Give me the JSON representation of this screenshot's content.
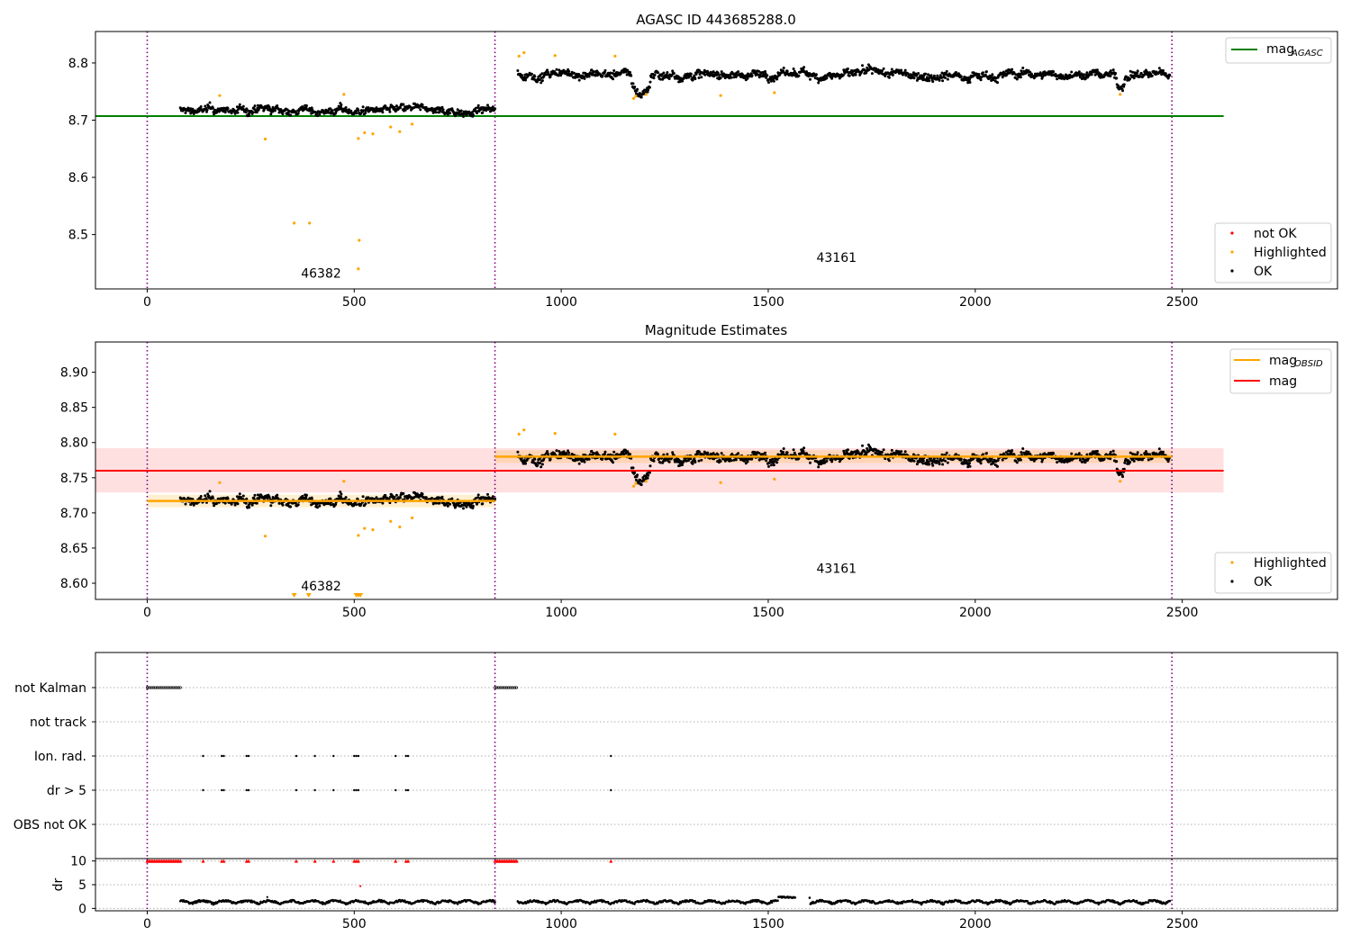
{
  "chart_data": [
    {
      "type": "scatter",
      "title": "AGASC ID 443685288.0",
      "xlabel": "",
      "ylabel": "",
      "xlim": [
        -125,
        2875
      ],
      "ylim": [
        8.405,
        8.855
      ],
      "xticks": [
        0,
        500,
        1000,
        1500,
        2000,
        2500
      ],
      "yticks": [
        8.5,
        8.6,
        8.7,
        8.8
      ],
      "ytick_labels": [
        "8.5",
        "8.6",
        "8.7",
        "8.8"
      ],
      "grid": false,
      "vlines": [
        0,
        840,
        2475
      ],
      "obsid_labels": [
        {
          "text": "46382",
          "x": 420,
          "y": 8.425
        },
        {
          "text": "43161",
          "x": 1665,
          "y": 8.452
        }
      ],
      "hlines": [
        {
          "name": "mag_AGASC",
          "y": 8.707,
          "x_range": [
            -125,
            2600
          ],
          "color": "#008000"
        }
      ],
      "segments": [
        {
          "x_range": [
            80,
            840
          ],
          "mean": 8.717,
          "spread": 0.008,
          "dips": []
        },
        {
          "x_range": [
            895,
            2470
          ],
          "mean": 8.78,
          "spread": 0.009,
          "dips": [
            [
              1170,
              1215,
              -0.035
            ],
            [
              2340,
              2360,
              -0.02
            ]
          ]
        }
      ],
      "highlighted_points": [
        [
          175,
          8.743
        ],
        [
          285,
          8.667
        ],
        [
          355,
          8.52
        ],
        [
          392,
          8.52
        ],
        [
          475,
          8.745
        ],
        [
          510,
          8.668
        ],
        [
          512,
          8.49
        ],
        [
          510,
          8.44
        ],
        [
          525,
          8.678
        ],
        [
          545,
          8.676
        ],
        [
          588,
          8.688
        ],
        [
          610,
          8.68
        ],
        [
          640,
          8.693
        ],
        [
          898,
          8.812
        ],
        [
          910,
          8.818
        ],
        [
          985,
          8.813
        ],
        [
          1130,
          8.812
        ],
        [
          1175,
          8.738
        ],
        [
          1180,
          8.742
        ],
        [
          1205,
          8.745
        ],
        [
          1385,
          8.743
        ],
        [
          1515,
          8.748
        ],
        [
          2350,
          8.745
        ]
      ],
      "legend": {
        "position": "top-right",
        "entries": [
          {
            "label": "mag",
            "sub": "AGASC",
            "color": "#008000"
          }
        ]
      },
      "legend2": {
        "position": "lower-right",
        "entries": [
          {
            "label": "not OK",
            "color": "#ff0000"
          },
          {
            "label": "Highlighted",
            "color": "#ffa500"
          },
          {
            "label": "OK",
            "color": "#000000"
          }
        ]
      },
      "series": [
        {
          "name": "OK",
          "color": "#000000"
        },
        {
          "name": "Highlighted",
          "color": "#ffa500"
        },
        {
          "name": "not OK",
          "color": "#ff0000"
        }
      ]
    },
    {
      "type": "scatter",
      "title": "Magnitude Estimates",
      "xlabel": "",
      "ylabel": "",
      "xlim": [
        -125,
        2875
      ],
      "ylim": [
        8.577,
        8.943
      ],
      "xticks": [
        0,
        500,
        1000,
        1500,
        2000,
        2500
      ],
      "yticks": [
        8.6,
        8.65,
        8.7,
        8.75,
        8.8,
        8.85,
        8.9
      ],
      "ytick_labels": [
        "8.60",
        "8.65",
        "8.70",
        "8.75",
        "8.80",
        "8.85",
        "8.90"
      ],
      "grid": false,
      "vlines": [
        0,
        840,
        2475
      ],
      "obsid_labels": [
        {
          "text": "46382",
          "x": 420,
          "y": 8.59
        },
        {
          "text": "43161",
          "x": 1665,
          "y": 8.615
        }
      ],
      "mag": {
        "name": "mag",
        "y": 8.76,
        "band": [
          8.729,
          8.792
        ],
        "x_range": [
          -125,
          2600
        ],
        "color": "#ff0000"
      },
      "mag_obsid": [
        {
          "x_range": [
            0,
            840
          ],
          "y": 8.717,
          "band": [
            8.708,
            8.726
          ]
        },
        {
          "x_range": [
            840,
            2475
          ],
          "y": 8.78,
          "band": [
            8.771,
            8.789
          ]
        }
      ],
      "clipped_markers_x": [
        355,
        390,
        505,
        510,
        515
      ],
      "legend": {
        "position": "top-right",
        "entries": [
          {
            "label": "mag",
            "sub": "OBSID",
            "color": "#ffa500"
          },
          {
            "label": "mag",
            "sub": "",
            "color": "#ff0000"
          }
        ]
      },
      "legend2": {
        "position": "lower-right",
        "entries": [
          {
            "label": "Highlighted",
            "color": "#ffa500"
          },
          {
            "label": "OK",
            "color": "#000000"
          }
        ]
      }
    },
    {
      "type": "scatter",
      "title": "",
      "xlim": [
        -125,
        2875
      ],
      "xticks": [
        0,
        500,
        1000,
        1500,
        2000,
        2500
      ],
      "vlines": [
        0,
        840,
        2475
      ],
      "flag_rows": [
        "not Kalman",
        "not track",
        "Ion. rad.",
        "dr > 5",
        "OBS not OK"
      ],
      "flags": {
        "not Kalman": [
          [
            0,
            82
          ],
          [
            840,
            895
          ]
        ],
        "not track": [],
        "Ion. rad.": [
          135,
          180,
          185,
          240,
          245,
          360,
          405,
          450,
          500,
          505,
          510,
          600,
          625,
          630,
          1120
        ],
        "dr > 5": [
          135,
          180,
          185,
          240,
          245,
          360,
          405,
          450,
          500,
          505,
          510,
          600,
          625,
          630,
          1120
        ],
        "OBS not OK": []
      },
      "dr_axis": {
        "ylabel": "dr",
        "ylim": [
          -0.5,
          10.5
        ],
        "yticks": [
          0,
          5,
          10
        ],
        "ytick_labels": [
          "0",
          "5",
          "10"
        ],
        "clipped_x": [
          0,
          82,
          135,
          180,
          185,
          240,
          245,
          360,
          405,
          450,
          500,
          505,
          510,
          600,
          625,
          630,
          840,
          895,
          1120
        ],
        "single_points": [
          [
            515,
            4.7
          ],
          [
            290,
            2.4
          ]
        ],
        "segments": [
          [
            80,
            840
          ],
          [
            895,
            1565
          ],
          [
            1600,
            2470
          ]
        ],
        "bump": [
          1525,
          1600,
          2.5
        ]
      }
    }
  ]
}
